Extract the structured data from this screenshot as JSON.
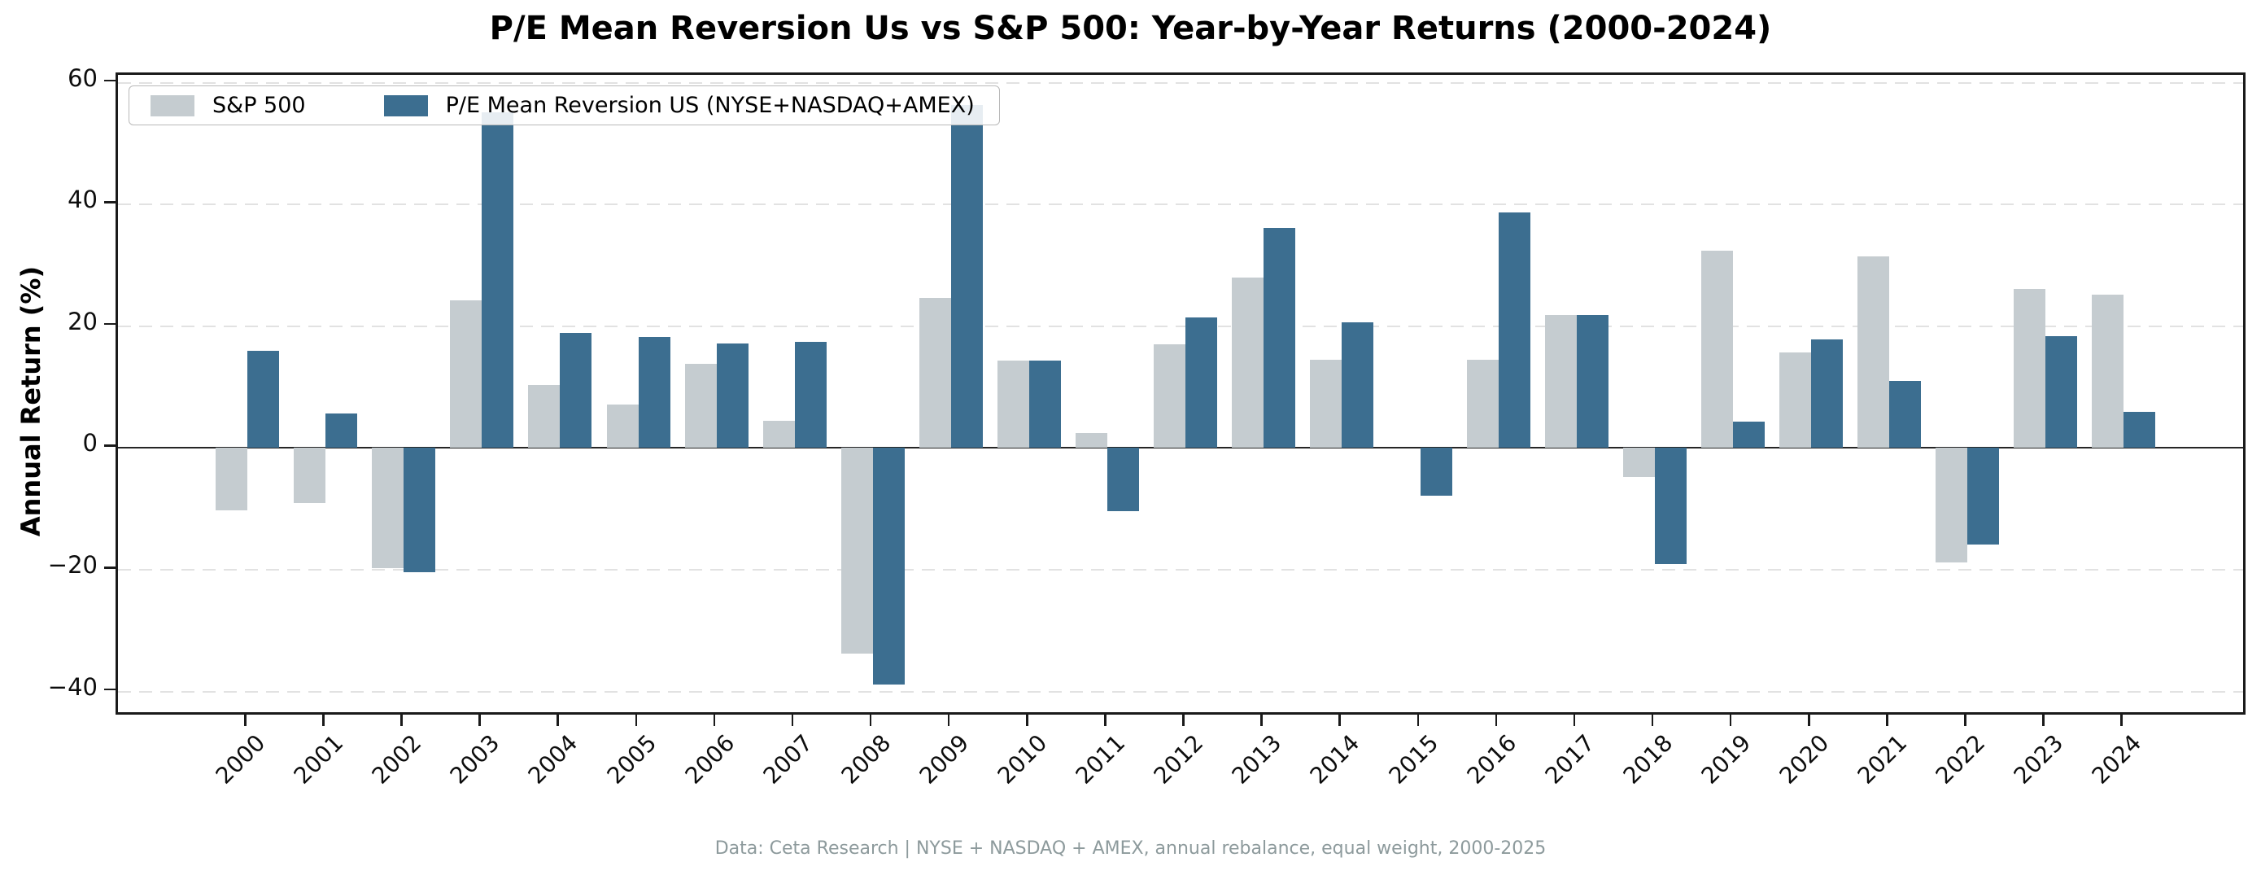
{
  "title": "P/E Mean Reversion Us vs S&P 500: Year-by-Year Returns (2000-2024)",
  "footer": "Data: Ceta Research | NYSE + NASDAQ + AMEX, annual rebalance, equal weight, 2000-2025",
  "colors": {
    "sp500": "#c5ccd0",
    "strategy": "#3c6e90",
    "zero_line": "#262626",
    "grid": "#e2e2e2",
    "spine": "#1a1a1a",
    "footer_text": "#8d9a9c"
  },
  "chart_data": {
    "type": "bar",
    "title": "P/E Mean Reversion Us vs S&P 500: Year-by-Year Returns (2000-2024)",
    "xlabel": "",
    "ylabel": "Annual Return (%)",
    "ylim": [
      -44.2,
      61.3
    ],
    "yticks": [
      -40,
      -20,
      0,
      20,
      40,
      60
    ],
    "grid": true,
    "legend_position": "upper left",
    "categories": [
      "2000",
      "2001",
      "2002",
      "2003",
      "2004",
      "2005",
      "2006",
      "2007",
      "2008",
      "2009",
      "2010",
      "2011",
      "2012",
      "2013",
      "2014",
      "2015",
      "2016",
      "2017",
      "2018",
      "2019",
      "2020",
      "2021",
      "2022",
      "2023",
      "2024"
    ],
    "series": [
      {
        "name": "S&P 500",
        "color": "#c5ccd0",
        "values": [
          -10.3,
          -9.1,
          -19.7,
          24.3,
          10.3,
          7.2,
          13.8,
          4.5,
          -33.8,
          24.7,
          14.4,
          2.5,
          17.0,
          28.0,
          14.5,
          0.0,
          14.5,
          21.8,
          -4.8,
          32.4,
          15.7,
          31.5,
          -18.8,
          26.1,
          25.2
        ]
      },
      {
        "name": "P/E Mean Reversion US (NYSE+NASDAQ+AMEX)",
        "color": "#3c6e90",
        "values": [
          16.0,
          5.7,
          -20.4,
          55.2,
          18.9,
          18.3,
          17.2,
          17.4,
          -38.9,
          56.4,
          14.4,
          -10.4,
          21.5,
          36.2,
          20.6,
          -7.8,
          38.7,
          21.8,
          -19.0,
          4.4,
          17.9,
          11.0,
          -15.8,
          18.4,
          6.0
        ]
      }
    ]
  }
}
